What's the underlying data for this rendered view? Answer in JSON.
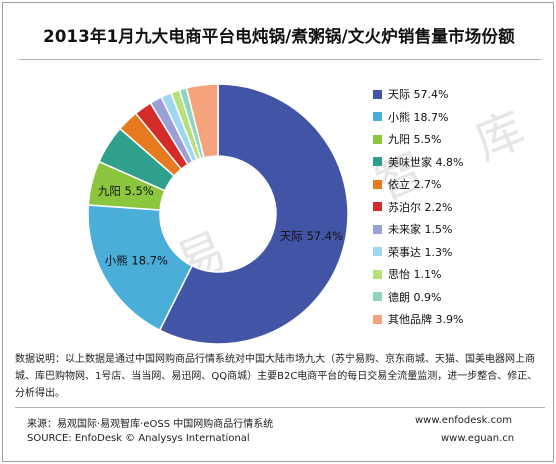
{
  "title": "2013年1月九大电商平台电炖锅/煮粥锅/文火炉销售量市场份额",
  "watermark": "易 观 智 库",
  "chart_data": {
    "type": "pie",
    "donut": true,
    "title": "2013年1月九大电商平台电炖锅/煮粥锅/文火炉销售量市场份额",
    "legend_position": "right",
    "slices": [
      {
        "name": "天际",
        "label": "天际 57.4%",
        "value": 57.4,
        "color": "#4154a6"
      },
      {
        "name": "小熊",
        "label": "小熊 18.7%",
        "value": 18.7,
        "color": "#4aaed9"
      },
      {
        "name": "九阳",
        "label": "九阳 5.5%",
        "value": 5.5,
        "color": "#8cc63e"
      },
      {
        "name": "美味世家",
        "label": "美味世家 4.8%",
        "value": 4.8,
        "color": "#2ea08c"
      },
      {
        "name": "依立",
        "label": "依立 2.7%",
        "value": 2.7,
        "color": "#e57a1f"
      },
      {
        "name": "苏泊尔",
        "label": "苏泊尔 2.2%",
        "value": 2.2,
        "color": "#d42b2b"
      },
      {
        "name": "未来家",
        "label": "未来家 1.5%",
        "value": 1.5,
        "color": "#9a9fd6"
      },
      {
        "name": "荣事达",
        "label": "荣事达 1.3%",
        "value": 1.3,
        "color": "#9fd7f0"
      },
      {
        "name": "思怡",
        "label": "思怡 1.1%",
        "value": 1.1,
        "color": "#b5e07a"
      },
      {
        "name": "德朗",
        "label": "德朗 0.9%",
        "value": 0.9,
        "color": "#8fd3c1"
      },
      {
        "name": "其他品牌",
        "label": "其他品牌 3.9%",
        "value": 3.9,
        "color": "#f4a37c"
      }
    ],
    "data_labels": [
      {
        "name": "天际",
        "text": "天际 57.4%"
      },
      {
        "name": "小熊",
        "text": "小熊 18.7%"
      },
      {
        "name": "九阳",
        "text": "九阳 5.5%"
      }
    ]
  },
  "footer": {
    "note": "数据说明：以上数据是通过中国网购商品行情系统对中国大陆市场九大（苏宁易购、京东商城、天猫、国美电器网上商城、库巴购物网、1号店、当当网、易迅网、QQ商城）主要B2C电商平台的每日交易全流量监测，进一步整合、修正、分析得出。",
    "source_cn": "来源：易观国际·易观智库·eOSS 中国网购商品行情系统",
    "source_en": "SOURCE: EnfoDesk © Analysys International",
    "url1": "www.enfodesk.com",
    "url2": "www.eguan.cn"
  }
}
